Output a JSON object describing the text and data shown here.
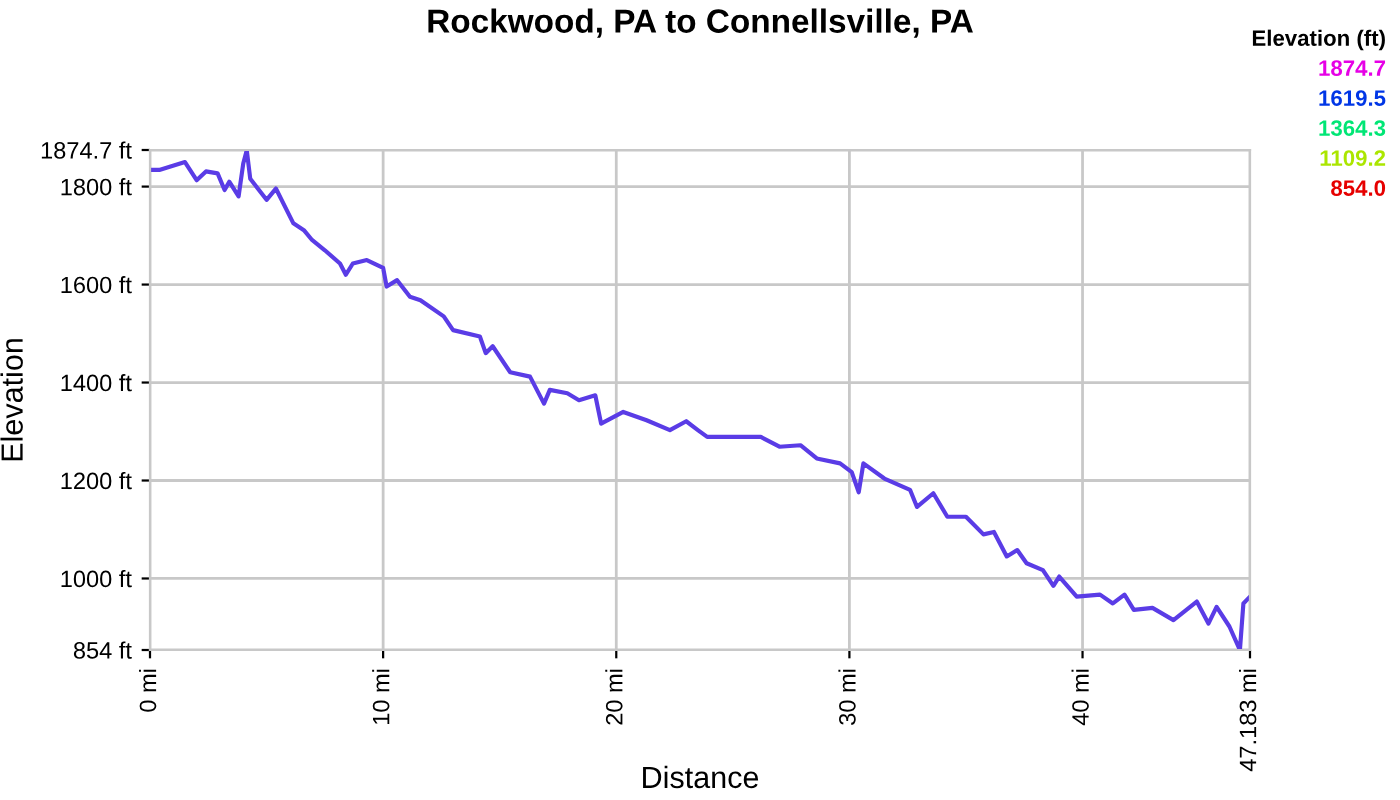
{
  "chart_data": {
    "type": "line",
    "title": "Rockwood, PA to Connellsville, PA",
    "xlabel": "Distance",
    "ylabel": "Elevation",
    "legend_title": "Elevation (ft)",
    "annotations": [
      "1874.7",
      "1619.5",
      "1364.3",
      "1109.2",
      "854.0"
    ],
    "xlim": [
      0,
      47.183
    ],
    "xticks": [
      {
        "value": 0,
        "label": "0 mi"
      },
      {
        "value": 10,
        "label": "10 mi"
      },
      {
        "value": 20,
        "label": "20 mi"
      },
      {
        "value": 30,
        "label": "30 mi"
      },
      {
        "value": 40,
        "label": "40 mi"
      },
      {
        "value": 47.183,
        "label": "47.183 mi"
      }
    ],
    "ylim": [
      854,
      1874.7
    ],
    "yticks": [
      {
        "value": 854,
        "label": "854 ft"
      },
      {
        "value": 1000,
        "label": "1000 ft"
      },
      {
        "value": 1200,
        "label": "1200 ft"
      },
      {
        "value": 1400,
        "label": "1400 ft"
      },
      {
        "value": 1600,
        "label": "1600 ft"
      },
      {
        "value": 1800,
        "label": "1800 ft"
      },
      {
        "value": 1874.7,
        "label": "1874.7 ft"
      }
    ],
    "grid": true,
    "color": "#5a3ce6",
    "x": [
      0,
      0.4,
      1.5,
      2.0,
      2.4,
      2.9,
      3.2,
      3.4,
      3.8,
      4.0,
      4.15,
      4.3,
      5.0,
      5.4,
      6.15,
      6.6,
      6.95,
      7.5,
      8.15,
      8.4,
      8.7,
      9.3,
      10.0,
      10.15,
      10.6,
      11.15,
      11.6,
      12.6,
      13.0,
      14.15,
      14.4,
      14.7,
      15.45,
      16.3,
      16.9,
      17.15,
      17.9,
      18.4,
      19.1,
      19.35,
      20.3,
      21.3,
      22.3,
      23.0,
      23.5,
      23.9,
      25.0,
      26.2,
      27.0,
      27.9,
      28.6,
      29.6,
      30.1,
      30.4,
      30.6,
      31.5,
      32.6,
      32.9,
      33.6,
      34.2,
      35.0,
      35.75,
      36.2,
      36.75,
      37.2,
      37.6,
      38.3,
      38.75,
      39.0,
      39.75,
      40.75,
      41.3,
      41.8,
      42.2,
      43.0,
      43.9,
      44.9,
      45.4,
      45.75,
      46.3,
      46.75,
      46.9,
      47.183
    ],
    "values": [
      1834,
      1834,
      1850,
      1813,
      1831,
      1827,
      1793,
      1810,
      1780,
      1847,
      1874,
      1816,
      1773,
      1796,
      1725,
      1711,
      1691,
      1670,
      1643,
      1620,
      1643,
      1650,
      1634,
      1596,
      1609,
      1575,
      1568,
      1535,
      1507,
      1494,
      1460,
      1474,
      1421,
      1412,
      1357,
      1385,
      1378,
      1364,
      1374,
      1316,
      1340,
      1323,
      1303,
      1321,
      1303,
      1289,
      1289,
      1289,
      1269,
      1272,
      1245,
      1235,
      1217,
      1176,
      1235,
      1204,
      1181,
      1146,
      1174,
      1126,
      1126,
      1090,
      1095,
      1045,
      1058,
      1031,
      1017,
      985,
      1004,
      963,
      967,
      949,
      967,
      936,
      940,
      915,
      953,
      908,
      942,
      902,
      854,
      949,
      963
    ]
  }
}
